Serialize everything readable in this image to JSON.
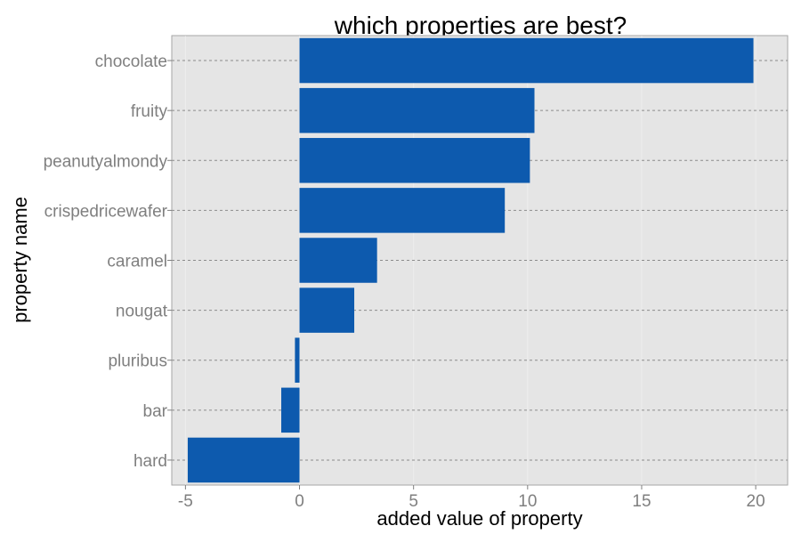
{
  "chart_data": {
    "type": "bar",
    "orientation": "horizontal",
    "title": "which properties are best?",
    "xlabel": "added value of property",
    "ylabel": "property name",
    "categories": [
      "chocolate",
      "fruity",
      "peanutyalmondy",
      "crispedricewafer",
      "caramel",
      "nougat",
      "pluribus",
      "bar",
      "hard"
    ],
    "values": [
      19.9,
      10.3,
      10.1,
      9.0,
      3.4,
      2.4,
      -0.2,
      -0.8,
      -4.9
    ],
    "xlim": [
      -5.6,
      21.4
    ],
    "xticks": [
      -5,
      0,
      5,
      10,
      15,
      20
    ],
    "grid": true,
    "legend": "none",
    "colors": {
      "bar": "#0d5aae",
      "panel_background": "#e5e5e5",
      "gridline": "#8c8c8c"
    }
  }
}
